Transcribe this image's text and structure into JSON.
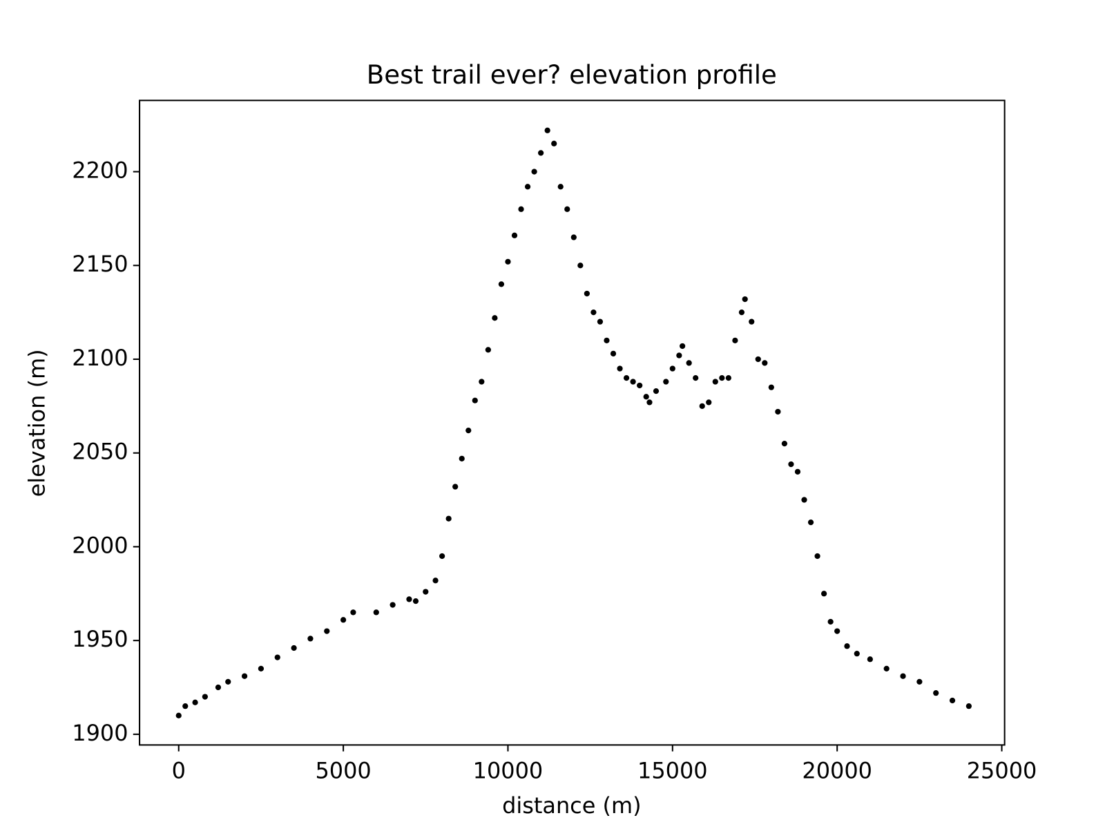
{
  "chart_data": {
    "type": "scatter",
    "title": "Best trail ever? elevation profile",
    "x_label": "distance (m)",
    "y_label": "elevation (m)",
    "color": "#000000",
    "grid": false,
    "x": [
      0,
      200,
      500,
      800,
      1200,
      1500,
      2000,
      2500,
      3000,
      3500,
      4000,
      4500,
      5000,
      5300,
      6000,
      6500,
      7000,
      7200,
      7500,
      7800,
      8000,
      8200,
      8400,
      8600,
      8800,
      9000,
      9200,
      9400,
      9600,
      9800,
      10000,
      10200,
      10400,
      10600,
      10800,
      11000,
      11200,
      11400,
      11600,
      11800,
      12000,
      12200,
      12400,
      12600,
      12800,
      13000,
      13200,
      13400,
      13600,
      13800,
      14000,
      14200,
      14300,
      14500,
      14800,
      15000,
      15200,
      15300,
      15500,
      15700,
      15900,
      16100,
      16300,
      16500,
      16700,
      16900,
      17100,
      17200,
      17400,
      17600,
      17800,
      18000,
      18200,
      18400,
      18600,
      18800,
      19000,
      19200,
      19400,
      19600,
      19800,
      20000,
      20300,
      20600,
      21000,
      21500,
      22000,
      22500,
      23000,
      23500,
      24000
    ],
    "values": [
      1910,
      1915,
      1917,
      1920,
      1925,
      1928,
      1931,
      1935,
      1941,
      1946,
      1951,
      1955,
      1961,
      1965,
      1965,
      1969,
      1972,
      1971,
      1976,
      1982,
      1995,
      2015,
      2032,
      2047,
      2062,
      2078,
      2088,
      2105,
      2122,
      2140,
      2152,
      2166,
      2180,
      2192,
      2200,
      2210,
      2222,
      2215,
      2192,
      2180,
      2165,
      2150,
      2135,
      2125,
      2120,
      2110,
      2103,
      2095,
      2090,
      2088,
      2086,
      2080,
      2077,
      2083,
      2088,
      2095,
      2102,
      2107,
      2098,
      2090,
      2075,
      2077,
      2088,
      2090,
      2090,
      2110,
      2125,
      2132,
      2120,
      2100,
      2098,
      2085,
      2072,
      2055,
      2044,
      2040,
      2025,
      2013,
      1995,
      1975,
      1960,
      1955,
      1947,
      1943,
      1940,
      1935,
      1931,
      1928,
      1922,
      1918,
      1915
    ],
    "xlim": [
      -1189,
      25086
    ],
    "ylim": [
      1894.3,
      2238
    ],
    "xticks": [
      0,
      5000,
      10000,
      15000,
      20000,
      25000
    ],
    "yticks": [
      1900,
      1950,
      2000,
      2050,
      2100,
      2150,
      2200
    ]
  }
}
